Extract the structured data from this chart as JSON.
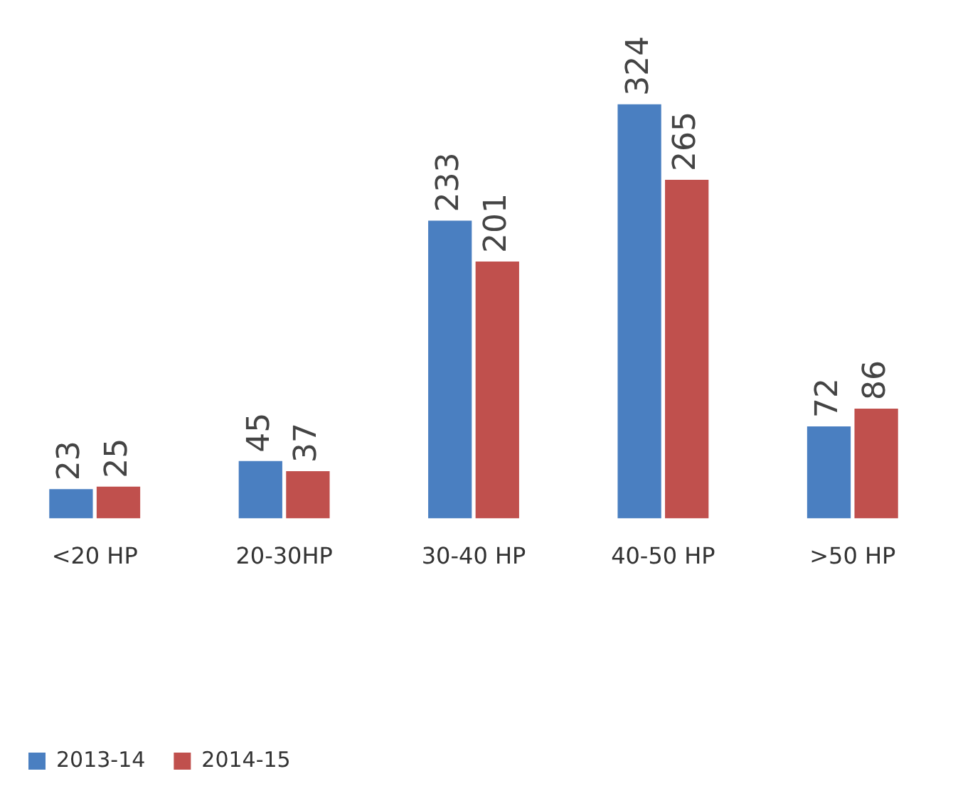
{
  "chart_data": {
    "type": "bar",
    "categories": [
      "<20 HP",
      "20-30HP",
      "30-40 HP",
      "40-50 HP",
      ">50 HP"
    ],
    "series": [
      {
        "name": "2013-14",
        "color": "#4a7fc1",
        "values": [
          23,
          45,
          233,
          324,
          72
        ]
      },
      {
        "name": "2014-15",
        "color": "#c0504d",
        "values": [
          25,
          37,
          201,
          265,
          86
        ]
      }
    ],
    "data_labels": true,
    "grid": false,
    "legend": "bottom left"
  }
}
